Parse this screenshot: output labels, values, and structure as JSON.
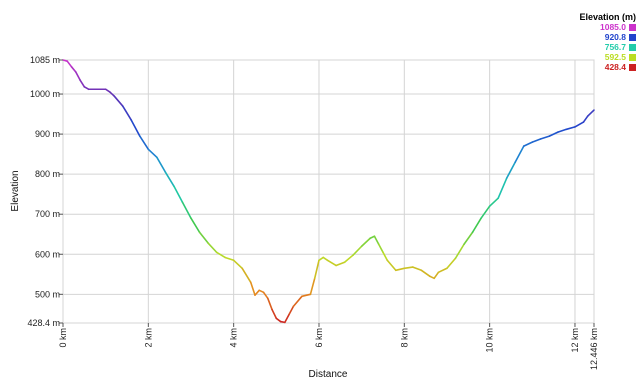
{
  "chart_data": {
    "type": "line",
    "xlabel": "Distance",
    "ylabel": "Elevation",
    "xlim": [
      0,
      12.446
    ],
    "ylim": [
      428.4,
      1085
    ],
    "grid": true,
    "y_ticks": [
      {
        "value": 1085,
        "label": "1085 m"
      },
      {
        "value": 1000,
        "label": "1000 m"
      },
      {
        "value": 900,
        "label": "900 m"
      },
      {
        "value": 800,
        "label": "800 m"
      },
      {
        "value": 700,
        "label": "700 m"
      },
      {
        "value": 600,
        "label": "600 m"
      },
      {
        "value": 500,
        "label": "500 m"
      },
      {
        "value": 428.4,
        "label": "428.4 m"
      }
    ],
    "x_ticks": [
      {
        "value": 0,
        "label": "0 km"
      },
      {
        "value": 2,
        "label": "2 km"
      },
      {
        "value": 4,
        "label": "4 km"
      },
      {
        "value": 6,
        "label": "6 km"
      },
      {
        "value": 8,
        "label": "8 km"
      },
      {
        "value": 10,
        "label": "10 km"
      },
      {
        "value": 12,
        "label": "12 km"
      },
      {
        "value": 12.446,
        "label": "12.446 km"
      }
    ],
    "legend": {
      "title": "Elevation (m)",
      "placement": "top-right",
      "entries": [
        {
          "label": "1085.0",
          "color": "#cc33cc"
        },
        {
          "label": "920.8",
          "color": "#2244cc"
        },
        {
          "label": "756.7",
          "color": "#22ccaa"
        },
        {
          "label": "592.5",
          "color": "#bbdd22"
        },
        {
          "label": "428.4",
          "color": "#cc2222"
        }
      ]
    },
    "series": [
      {
        "x": [
          0,
          0.1,
          0.2,
          0.3,
          0.4,
          0.5,
          0.6,
          0.8,
          1.0,
          1.1,
          1.2,
          1.4,
          1.6,
          1.8,
          2.0,
          2.2,
          2.4,
          2.6,
          2.8,
          3.0,
          3.2,
          3.4,
          3.6,
          3.8,
          4.0,
          4.2,
          4.4,
          4.5,
          4.6,
          4.7,
          4.8,
          4.9,
          5.0,
          5.1,
          5.2,
          5.3,
          5.4,
          5.6,
          5.8,
          5.9,
          6.0,
          6.1,
          6.2,
          6.4,
          6.6,
          6.8,
          7.0,
          7.2,
          7.3,
          7.4,
          7.5,
          7.6,
          7.8,
          8.0,
          8.2,
          8.4,
          8.6,
          8.7,
          8.8,
          9.0,
          9.2,
          9.4,
          9.6,
          9.8,
          10.0,
          10.2,
          10.4,
          10.6,
          10.8,
          11.0,
          11.2,
          11.4,
          11.6,
          11.8,
          12.0,
          12.2,
          12.3,
          12.446
        ],
        "values": [
          1085,
          1082,
          1068,
          1055,
          1035,
          1018,
          1012,
          1012,
          1012,
          1005,
          995,
          970,
          935,
          895,
          862,
          842,
          805,
          770,
          730,
          690,
          655,
          628,
          605,
          592,
          585,
          565,
          530,
          498,
          510,
          505,
          490,
          462,
          440,
          432,
          430,
          450,
          470,
          495,
          500,
          540,
          585,
          592,
          585,
          572,
          580,
          598,
          620,
          640,
          645,
          625,
          605,
          585,
          560,
          565,
          568,
          560,
          545,
          540,
          555,
          565,
          590,
          625,
          655,
          690,
          720,
          740,
          790,
          830,
          870,
          880,
          888,
          895,
          905,
          912,
          918,
          930,
          945,
          960
        ]
      }
    ]
  }
}
